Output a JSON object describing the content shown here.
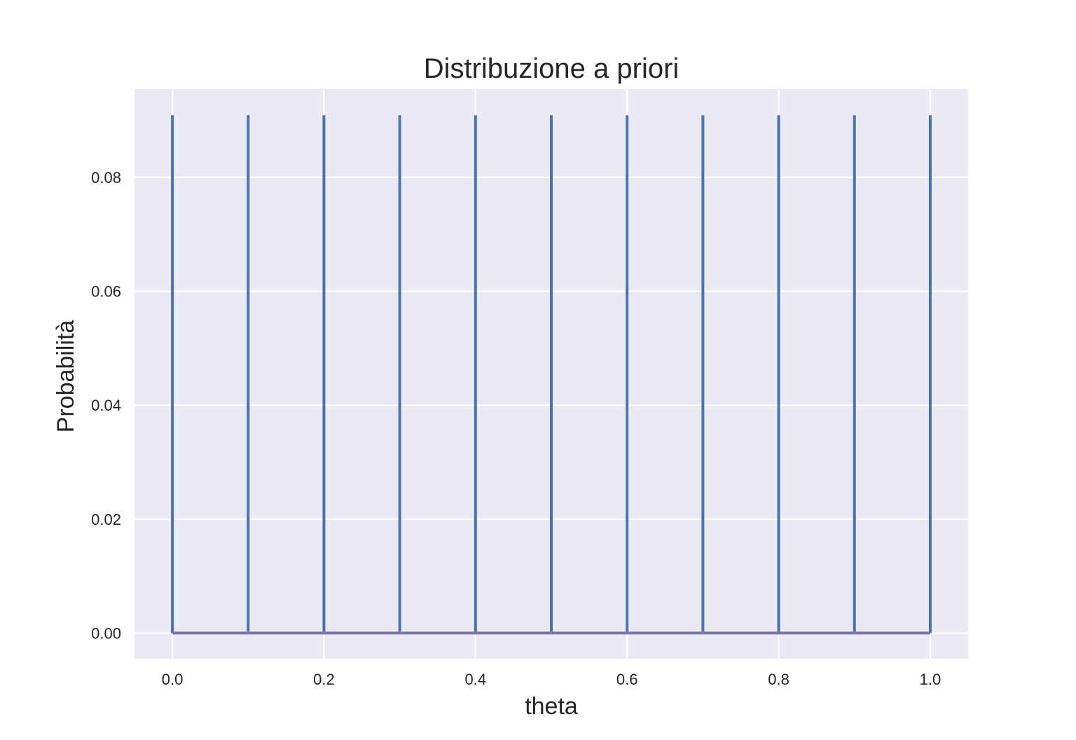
{
  "chart_data": {
    "type": "bar",
    "title": "Distribuzione a priori",
    "xlabel": "theta",
    "ylabel": "Probabilità",
    "xlim": [
      -0.05,
      1.05
    ],
    "ylim": [
      -0.0045,
      0.0955
    ],
    "grid": true,
    "x": [
      0.0,
      0.1,
      0.2,
      0.3,
      0.4,
      0.5,
      0.6,
      0.7,
      0.8,
      0.9,
      1.0
    ],
    "values": [
      0.0909,
      0.0909,
      0.0909,
      0.0909,
      0.0909,
      0.0909,
      0.0909,
      0.0909,
      0.0909,
      0.0909,
      0.0909
    ],
    "x_ticks": [
      "0.0",
      "0.2",
      "0.4",
      "0.6",
      "0.8",
      "1.0"
    ],
    "y_ticks": [
      "0.00",
      "0.02",
      "0.04",
      "0.06",
      "0.08"
    ],
    "colors": {
      "background": "#eaeaf2",
      "grid": "#ffffff",
      "stem": "#4c72b0",
      "baseline": "#8172b2"
    }
  }
}
